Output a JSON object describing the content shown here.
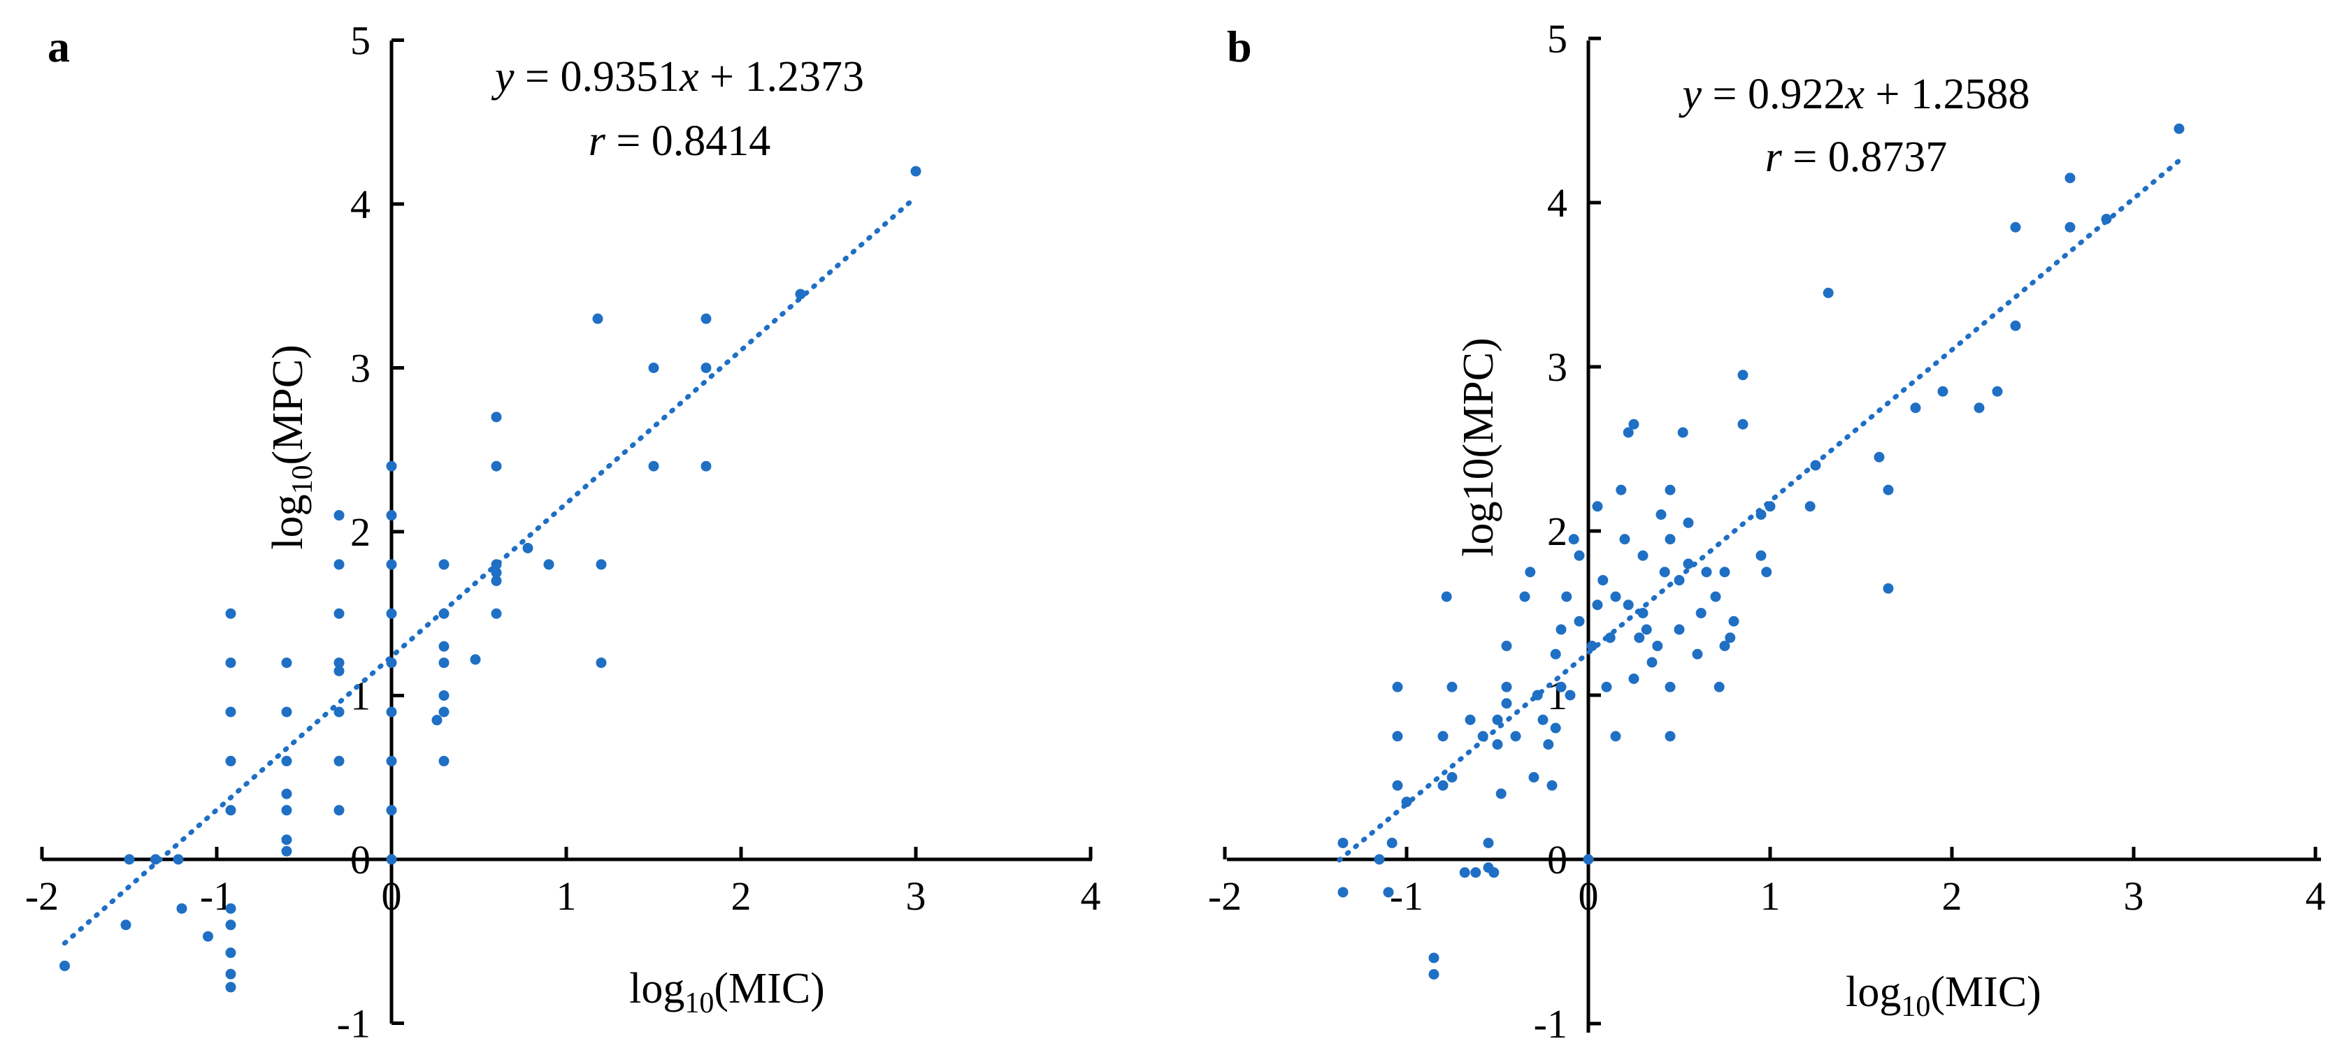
{
  "chart_data": [
    {
      "panel": "a",
      "type": "scatter",
      "color": "#1f6fc4",
      "xlabel": {
        "base": "log",
        "sub": "10",
        "rest": "(MIC)"
      },
      "ylabel": {
        "base": "log",
        "sub": "10",
        "rest": "(MPC)"
      },
      "xlim": [
        -2,
        4
      ],
      "ylim": [
        -1,
        5
      ],
      "xticks": [
        "-2",
        "-1",
        "0",
        "1",
        "2",
        "3",
        "4"
      ],
      "yticks": [
        "-1",
        "0",
        "1",
        "2",
        "3",
        "4",
        "5"
      ],
      "equation": {
        "y": "y",
        "mid": " = 0.9351",
        "x": "x",
        "end": " + 1.2373"
      },
      "r_text": {
        "r": "r",
        "rest": " = 0.8414"
      },
      "trendline": {
        "slope": 0.9351,
        "intercept": 1.2373,
        "x_from": -1.87,
        "x_to": 3.0
      },
      "points": [
        [
          -1.87,
          -0.65
        ],
        [
          -1.52,
          -0.4
        ],
        [
          -1.5,
          0.0
        ],
        [
          -1.35,
          0.0
        ],
        [
          -1.22,
          0.0
        ],
        [
          -1.2,
          -0.3
        ],
        [
          -1.05,
          -0.47
        ],
        [
          -0.92,
          -0.3
        ],
        [
          -0.92,
          -0.4
        ],
        [
          -0.92,
          -0.57
        ],
        [
          -0.92,
          -0.7
        ],
        [
          -0.92,
          -0.78
        ],
        [
          -0.92,
          0.3
        ],
        [
          -0.92,
          0.6
        ],
        [
          -0.92,
          0.9
        ],
        [
          -0.92,
          1.2
        ],
        [
          -0.92,
          1.5
        ],
        [
          -0.6,
          0.05
        ],
        [
          -0.6,
          0.12
        ],
        [
          -0.6,
          0.3
        ],
        [
          -0.6,
          0.4
        ],
        [
          -0.6,
          0.6
        ],
        [
          -0.6,
          0.9
        ],
        [
          -0.6,
          1.2
        ],
        [
          -0.3,
          0.3
        ],
        [
          -0.3,
          0.6
        ],
        [
          -0.3,
          0.9
        ],
        [
          -0.3,
          1.15
        ],
        [
          -0.3,
          1.2
        ],
        [
          -0.3,
          1.5
        ],
        [
          -0.3,
          1.8
        ],
        [
          -0.3,
          2.1
        ],
        [
          0.0,
          0.0
        ],
        [
          0.0,
          0.3
        ],
        [
          0.0,
          0.6
        ],
        [
          0.0,
          0.9
        ],
        [
          0.0,
          1.2
        ],
        [
          0.0,
          1.5
        ],
        [
          0.0,
          1.8
        ],
        [
          0.0,
          2.1
        ],
        [
          0.0,
          2.4
        ],
        [
          0.26,
          0.85
        ],
        [
          0.3,
          0.6
        ],
        [
          0.3,
          0.9
        ],
        [
          0.3,
          1.0
        ],
        [
          0.3,
          1.2
        ],
        [
          0.3,
          1.3
        ],
        [
          0.3,
          1.5
        ],
        [
          0.3,
          1.8
        ],
        [
          0.48,
          1.22
        ],
        [
          0.6,
          1.5
        ],
        [
          0.6,
          1.7
        ],
        [
          0.6,
          1.75
        ],
        [
          0.6,
          1.8
        ],
        [
          0.6,
          2.4
        ],
        [
          0.6,
          2.7
        ],
        [
          0.78,
          1.9
        ],
        [
          0.9,
          1.8
        ],
        [
          1.18,
          3.3
        ],
        [
          1.2,
          1.2
        ],
        [
          1.2,
          1.8
        ],
        [
          1.5,
          2.4
        ],
        [
          1.5,
          3.0
        ],
        [
          1.8,
          2.4
        ],
        [
          1.8,
          3.0
        ],
        [
          1.8,
          3.3
        ],
        [
          2.34,
          3.45
        ],
        [
          3.0,
          4.2
        ]
      ]
    },
    {
      "panel": "b",
      "type": "scatter",
      "color": "#1f6fc4",
      "xlabel": {
        "base": "log",
        "sub": "10",
        "rest": "(MIC)"
      },
      "ylabel": {
        "base": "log10(MPC)",
        "sub": "",
        "rest": ""
      },
      "xlim": [
        -2,
        4
      ],
      "ylim": [
        -1,
        5
      ],
      "xticks": [
        "-2",
        "-1",
        "0",
        "1",
        "2",
        "3",
        "4"
      ],
      "yticks": [
        "-1",
        "0",
        "1",
        "2",
        "3",
        "4",
        "5"
      ],
      "equation": {
        "y": "y",
        "mid": " = 0.922",
        "x": "x",
        "end": " + 1.2588"
      },
      "r_text": {
        "r": "r",
        "rest": " = 0.8737"
      },
      "trendline": {
        "slope": 0.922,
        "intercept": 1.2588,
        "x_from": -1.37,
        "x_to": 3.25
      },
      "points": [
        [
          -1.35,
          0.1
        ],
        [
          -1.35,
          -0.2
        ],
        [
          -1.15,
          0.0
        ],
        [
          -1.1,
          -0.2
        ],
        [
          -1.08,
          0.1
        ],
        [
          -1.05,
          0.45
        ],
        [
          -1.05,
          0.75
        ],
        [
          -1.05,
          1.05
        ],
        [
          -1.0,
          0.35
        ],
        [
          -0.85,
          -0.6
        ],
        [
          -0.85,
          -0.7
        ],
        [
          -0.8,
          0.45
        ],
        [
          -0.8,
          0.75
        ],
        [
          -0.78,
          1.6
        ],
        [
          -0.75,
          1.05
        ],
        [
          -0.75,
          0.5
        ],
        [
          -0.68,
          -0.08
        ],
        [
          -0.65,
          0.85
        ],
        [
          -0.62,
          -0.08
        ],
        [
          -0.58,
          0.75
        ],
        [
          -0.55,
          -0.05
        ],
        [
          -0.55,
          0.1
        ],
        [
          -0.52,
          -0.08
        ],
        [
          -0.5,
          0.85
        ],
        [
          -0.5,
          0.7
        ],
        [
          -0.48,
          0.4
        ],
        [
          -0.45,
          0.95
        ],
        [
          -0.45,
          1.05
        ],
        [
          -0.45,
          1.3
        ],
        [
          -0.4,
          0.75
        ],
        [
          -0.35,
          1.6
        ],
        [
          -0.32,
          1.75
        ],
        [
          -0.3,
          0.5
        ],
        [
          -0.28,
          1.0
        ],
        [
          -0.25,
          0.85
        ],
        [
          -0.22,
          0.7
        ],
        [
          -0.2,
          0.45
        ],
        [
          -0.18,
          0.8
        ],
        [
          -0.18,
          1.25
        ],
        [
          -0.15,
          1.05
        ],
        [
          -0.15,
          1.4
        ],
        [
          -0.12,
          1.6
        ],
        [
          -0.1,
          1.0
        ],
        [
          -0.08,
          1.95
        ],
        [
          -0.05,
          1.85
        ],
        [
          -0.05,
          1.45
        ],
        [
          0.0,
          0.0
        ],
        [
          0.02,
          1.3
        ],
        [
          0.05,
          2.15
        ],
        [
          0.05,
          1.55
        ],
        [
          0.08,
          1.7
        ],
        [
          0.1,
          1.05
        ],
        [
          0.12,
          1.35
        ],
        [
          0.15,
          0.75
        ],
        [
          0.15,
          1.6
        ],
        [
          0.18,
          2.25
        ],
        [
          0.2,
          1.95
        ],
        [
          0.22,
          1.55
        ],
        [
          0.22,
          2.6
        ],
        [
          0.25,
          2.65
        ],
        [
          0.25,
          1.1
        ],
        [
          0.28,
          1.35
        ],
        [
          0.3,
          1.5
        ],
        [
          0.3,
          1.85
        ],
        [
          0.32,
          1.4
        ],
        [
          0.35,
          1.2
        ],
        [
          0.38,
          1.3
        ],
        [
          0.4,
          2.1
        ],
        [
          0.42,
          1.75
        ],
        [
          0.45,
          0.75
        ],
        [
          0.45,
          1.05
        ],
        [
          0.45,
          1.95
        ],
        [
          0.45,
          2.25
        ],
        [
          0.5,
          1.4
        ],
        [
          0.5,
          1.7
        ],
        [
          0.52,
          2.6
        ],
        [
          0.55,
          1.8
        ],
        [
          0.55,
          2.05
        ],
        [
          0.6,
          1.25
        ],
        [
          0.62,
          1.5
        ],
        [
          0.65,
          1.75
        ],
        [
          0.7,
          1.6
        ],
        [
          0.72,
          1.05
        ],
        [
          0.75,
          1.3
        ],
        [
          0.75,
          1.75
        ],
        [
          0.78,
          1.35
        ],
        [
          0.8,
          1.45
        ],
        [
          0.85,
          2.65
        ],
        [
          0.85,
          2.95
        ],
        [
          0.95,
          1.85
        ],
        [
          0.95,
          2.1
        ],
        [
          0.98,
          1.75
        ],
        [
          1.0,
          2.15
        ],
        [
          1.22,
          2.15
        ],
        [
          1.25,
          2.4
        ],
        [
          1.32,
          3.45
        ],
        [
          1.6,
          2.45
        ],
        [
          1.65,
          2.25
        ],
        [
          1.65,
          1.65
        ],
        [
          1.8,
          2.75
        ],
        [
          1.95,
          2.85
        ],
        [
          2.15,
          2.75
        ],
        [
          2.25,
          2.85
        ],
        [
          2.35,
          3.25
        ],
        [
          2.35,
          3.85
        ],
        [
          2.65,
          3.85
        ],
        [
          2.65,
          4.15
        ],
        [
          2.85,
          3.9
        ],
        [
          3.25,
          4.45
        ]
      ]
    }
  ]
}
